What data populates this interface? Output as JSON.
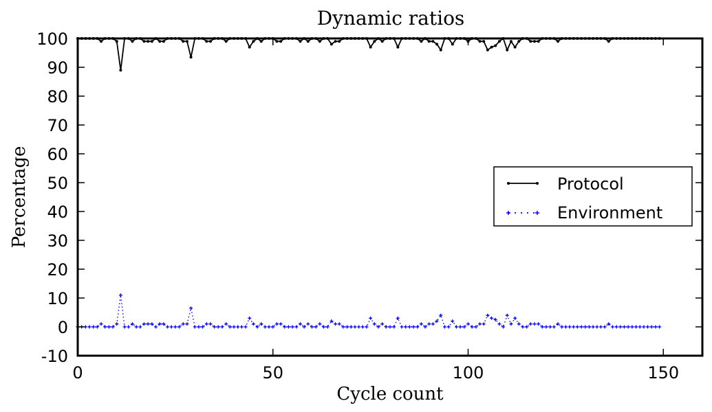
{
  "chart_data": {
    "type": "line",
    "title": "Dynamic ratios",
    "xlabel": "Cycle count",
    "ylabel": "Percentage",
    "xlim": [
      0,
      160
    ],
    "ylim": [
      -10,
      100
    ],
    "xticks": [
      0,
      50,
      100,
      150
    ],
    "yticks": [
      -10,
      0,
      10,
      20,
      30,
      40,
      50,
      60,
      70,
      80,
      90,
      100
    ],
    "grid": false,
    "legend_position": "center-right",
    "x": [
      0,
      1,
      2,
      3,
      4,
      5,
      6,
      7,
      8,
      9,
      10,
      11,
      12,
      13,
      14,
      15,
      16,
      17,
      18,
      19,
      20,
      21,
      22,
      23,
      24,
      25,
      26,
      27,
      28,
      29,
      30,
      31,
      32,
      33,
      34,
      35,
      36,
      37,
      38,
      39,
      40,
      41,
      42,
      43,
      44,
      45,
      46,
      47,
      48,
      49,
      50,
      51,
      52,
      53,
      54,
      55,
      56,
      57,
      58,
      59,
      60,
      61,
      62,
      63,
      64,
      65,
      66,
      67,
      68,
      69,
      70,
      71,
      72,
      73,
      74,
      75,
      76,
      77,
      78,
      79,
      80,
      81,
      82,
      83,
      84,
      85,
      86,
      87,
      88,
      89,
      90,
      91,
      92,
      93,
      94,
      95,
      96,
      97,
      98,
      99,
      100,
      101,
      102,
      103,
      104,
      105,
      106,
      107,
      108,
      109,
      110,
      111,
      112,
      113,
      114,
      115,
      116,
      117,
      118,
      119,
      120,
      121,
      122,
      123,
      124,
      125,
      126,
      127,
      128,
      129,
      130,
      131,
      132,
      133,
      134,
      135,
      136,
      137,
      138,
      139,
      140,
      141,
      142,
      143,
      144,
      145,
      146,
      147,
      148,
      149
    ],
    "series": [
      {
        "name": "Protocol",
        "color": "#000000",
        "marker": "dot",
        "line_style": "solid",
        "values": [
          100,
          100,
          100,
          100,
          100,
          100,
          99,
          100,
          100,
          100,
          99,
          89,
          100,
          100,
          99,
          100,
          100,
          99,
          99,
          99,
          100,
          99,
          99,
          100,
          100,
          100,
          100,
          99,
          99,
          93.5,
          100,
          100,
          100,
          99,
          99,
          100,
          100,
          100,
          99,
          100,
          100,
          100,
          100,
          100,
          97,
          99,
          100,
          99,
          100,
          100,
          100,
          99,
          99,
          100,
          100,
          100,
          100,
          99,
          100,
          99,
          100,
          100,
          99,
          100,
          100,
          98,
          99,
          99,
          100,
          100,
          100,
          100,
          100,
          100,
          100,
          97,
          99,
          100,
          99,
          100,
          100,
          100,
          97,
          100,
          100,
          100,
          100,
          100,
          99,
          100,
          99,
          99,
          98,
          96,
          100,
          100,
          98,
          100,
          100,
          100,
          99,
          100,
          100,
          99,
          99,
          96,
          97,
          97.5,
          99,
          100,
          96,
          99,
          97,
          99,
          100,
          100,
          99,
          99,
          99,
          100,
          100,
          100,
          100,
          99,
          100,
          100,
          100,
          100,
          100,
          100,
          100,
          100,
          100,
          100,
          100,
          100,
          99,
          100,
          100,
          100,
          100,
          100,
          100,
          100,
          100,
          100,
          100,
          100,
          100,
          100
        ]
      },
      {
        "name": "Environment",
        "color": "#0000ff",
        "marker": "plus",
        "line_style": "dotted",
        "values": [
          0,
          0,
          0,
          0,
          0,
          0,
          1,
          0,
          0,
          0,
          1,
          11,
          0,
          0,
          1,
          0,
          0,
          1,
          1,
          1,
          0,
          1,
          1,
          0,
          0,
          0,
          0,
          1,
          1,
          6.5,
          0,
          0,
          0,
          1,
          1,
          0,
          0,
          0,
          1,
          0,
          0,
          0,
          0,
          0,
          3,
          1,
          0,
          1,
          0,
          0,
          0,
          1,
          1,
          0,
          0,
          0,
          0,
          1,
          0,
          1,
          0,
          0,
          1,
          0,
          0,
          2,
          1,
          1,
          0,
          0,
          0,
          0,
          0,
          0,
          0,
          3,
          1,
          0,
          1,
          0,
          0,
          0,
          3,
          0,
          0,
          0,
          0,
          0,
          1,
          0,
          1,
          1,
          2,
          4,
          0,
          0,
          2,
          0,
          0,
          0,
          1,
          0,
          0,
          1,
          1,
          4,
          3,
          2.5,
          1,
          0,
          4,
          1,
          3,
          1,
          0,
          0,
          1,
          1,
          1,
          0,
          0,
          0,
          0,
          1,
          0,
          0,
          0,
          0,
          0,
          0,
          0,
          0,
          0,
          0,
          0,
          0,
          1,
          0,
          0,
          0,
          0,
          0,
          0,
          0,
          0,
          0,
          0,
          0,
          0,
          0
        ]
      }
    ]
  }
}
